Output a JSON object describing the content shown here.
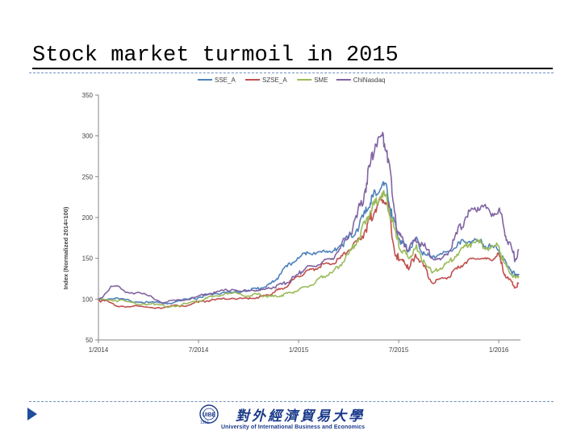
{
  "slide": {
    "title": "Stock market turmoil in 2015"
  },
  "footer": {
    "logo_cn": "對外經濟貿易大學",
    "logo_en": "University of International Business and Economics",
    "logo_year": "1951"
  },
  "colors": {
    "SSE_A": "#4f81bd",
    "SZSE_A": "#c0504d",
    "SME": "#9bbb59",
    "ChiNasdaq": "#8064a2",
    "accent": "#1f4e9a"
  },
  "chart_data": {
    "type": "line",
    "title": "",
    "xlabel": "",
    "ylabel": "Index (Normalized 2014=100)",
    "ylim": [
      50,
      350
    ],
    "yticks": [
      50,
      100,
      150,
      200,
      250,
      300,
      350
    ],
    "xticks": [
      {
        "label": "1/2014",
        "t": 0
      },
      {
        "label": "7/2014",
        "t": 6
      },
      {
        "label": "1/2015",
        "t": 12
      },
      {
        "label": "7/2015",
        "t": 18
      },
      {
        "label": "1/2016",
        "t": 24
      }
    ],
    "xlim": [
      0,
      25.3
    ],
    "grid": false,
    "legend": "top-center",
    "series": [
      {
        "name": "SSE_A",
        "x": [
          0,
          1,
          2,
          3,
          4,
          5,
          6,
          6.5,
          7,
          8,
          9,
          9.5,
          10,
          10.5,
          11,
          11.5,
          12,
          12.5,
          13,
          13.5,
          14,
          14.5,
          15,
          15.5,
          16,
          16.3,
          16.6,
          17,
          17.3,
          17.6,
          18,
          18.3,
          18.6,
          19,
          19.5,
          20,
          20.5,
          21,
          21.5,
          22,
          22.5,
          23,
          23.5,
          24,
          24.3,
          24.6,
          25,
          25.2
        ],
        "y": [
          100,
          101,
          97,
          96,
          95,
          98,
          102,
          105,
          107,
          108,
          111,
          113,
          115,
          121,
          134,
          143,
          150,
          158,
          155,
          160,
          157,
          166,
          175,
          186,
          205,
          218,
          231,
          240,
          236,
          200,
          175,
          168,
          160,
          173,
          158,
          150,
          156,
          158,
          165,
          170,
          172,
          168,
          164,
          160,
          148,
          140,
          128,
          131
        ]
      },
      {
        "name": "SZSE_A",
        "x": [
          0,
          1,
          2,
          3,
          4,
          5,
          6,
          6.5,
          7,
          8,
          9,
          9.5,
          10,
          10.5,
          11,
          11.5,
          12,
          12.5,
          13,
          13.5,
          14,
          14.5,
          15,
          15.5,
          16,
          16.3,
          16.6,
          17,
          17.3,
          17.6,
          18,
          18.3,
          18.6,
          19,
          19.5,
          20,
          20.5,
          21,
          21.5,
          22,
          22.5,
          23,
          23.5,
          24,
          24.3,
          24.6,
          25,
          25.2
        ],
        "y": [
          100,
          92,
          91,
          90,
          90,
          92,
          96,
          98,
          99,
          101,
          100,
          102,
          104,
          108,
          113,
          120,
          128,
          135,
          137,
          143,
          143,
          150,
          160,
          170,
          185,
          198,
          210,
          222,
          218,
          175,
          147,
          148,
          136,
          155,
          140,
          120,
          125,
          127,
          137,
          145,
          150,
          150,
          148,
          155,
          132,
          124,
          114,
          120
        ]
      },
      {
        "name": "SME",
        "x": [
          0,
          1,
          2,
          3,
          4,
          5,
          6,
          6.5,
          7,
          8,
          9,
          9.5,
          10,
          10.5,
          11,
          11.5,
          12,
          12.5,
          13,
          13.5,
          14,
          14.5,
          15,
          15.5,
          16,
          16.3,
          16.6,
          17,
          17.3,
          17.6,
          18,
          18.3,
          18.6,
          19,
          19.5,
          20,
          20.5,
          21,
          21.5,
          22,
          22.5,
          23,
          23.5,
          24,
          24.3,
          24.6,
          25,
          25.2
        ],
        "y": [
          100,
          99,
          96,
          94,
          91,
          93,
          98,
          101,
          104,
          107,
          104,
          106,
          104,
          103,
          105,
          108,
          111,
          115,
          120,
          128,
          132,
          142,
          155,
          172,
          192,
          208,
          218,
          230,
          222,
          195,
          165,
          160,
          150,
          162,
          148,
          132,
          138,
          145,
          155,
          165,
          170,
          168,
          162,
          165,
          145,
          135,
          126,
          128
        ]
      },
      {
        "name": "ChiNasdaq",
        "x": [
          0,
          1,
          2,
          3,
          4,
          5,
          6,
          6.5,
          7,
          8,
          9,
          9.5,
          10,
          10.5,
          11,
          11.5,
          12,
          12.5,
          13,
          13.5,
          14,
          14.5,
          15,
          15.5,
          16,
          16.3,
          16.6,
          17,
          17.3,
          17.6,
          18,
          18.3,
          18.6,
          19,
          19.5,
          20,
          20.5,
          21,
          21.5,
          22,
          22.5,
          23,
          23.5,
          24,
          24.3,
          24.6,
          25,
          25.2
        ],
        "y": [
          100,
          116,
          108,
          104,
          96,
          99,
          104,
          106,
          108,
          112,
          110,
          111,
          112,
          115,
          118,
          123,
          131,
          140,
          140,
          147,
          150,
          162,
          178,
          200,
          235,
          265,
          290,
          300,
          282,
          230,
          180,
          170,
          160,
          175,
          165,
          150,
          148,
          158,
          180,
          200,
          210,
          215,
          205,
          210,
          188,
          170,
          148,
          160
        ]
      }
    ]
  }
}
